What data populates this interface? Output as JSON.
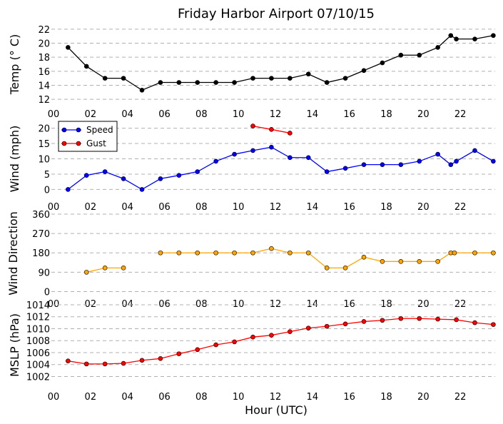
{
  "chart_data": [
    {
      "type": "line",
      "title": "Friday Harbor Airport 07/10/15",
      "ylabel": "Temp ($^\\circ$C)",
      "ylabel_display": "Temp (° C)",
      "xlabel": "",
      "xlim": [
        0,
        24
      ],
      "ylim": [
        11.5,
        22.5
      ],
      "yticks": [
        12,
        14,
        16,
        18,
        20,
        22
      ],
      "ytick_labels": [
        "12",
        "14",
        "16",
        "18",
        "20",
        "22"
      ],
      "xtick_labels": [
        "00",
        "02",
        "04",
        "06",
        "08",
        "10",
        "12",
        "14",
        "16",
        "18",
        "20",
        "22"
      ],
      "grid": true,
      "series": [
        {
          "color": "#000000",
          "x": [
            0.9,
            1.9,
            2.9,
            3.9,
            4.9,
            5.9,
            6.9,
            7.9,
            8.9,
            9.9,
            10.9,
            11.9,
            12.9,
            13.9,
            14.9,
            15.9,
            16.9,
            17.9,
            18.9,
            19.9,
            20.9,
            21.6,
            21.9,
            22.9,
            23.9
          ],
          "values": [
            19.4,
            16.7,
            15.0,
            15.0,
            13.3,
            14.4,
            14.4,
            14.4,
            14.4,
            14.4,
            15.0,
            15.0,
            15.0,
            15.6,
            14.4,
            15.0,
            16.1,
            17.2,
            18.3,
            18.3,
            19.4,
            21.1,
            20.6,
            20.6,
            21.1
          ]
        }
      ]
    },
    {
      "type": "line",
      "ylabel": "Wind (mph)",
      "xlabel": "",
      "xlim": [
        0,
        24
      ],
      "ylim": [
        -2,
        22
      ],
      "yticks": [
        0,
        5,
        10,
        15,
        20
      ],
      "ytick_labels": [
        "0",
        "5",
        "10",
        "15",
        "20"
      ],
      "xtick_labels": [
        "00",
        "02",
        "04",
        "06",
        "08",
        "10",
        "12",
        "14",
        "16",
        "18",
        "20",
        "22"
      ],
      "grid": true,
      "legend": "top-left",
      "series": [
        {
          "name": "Speed",
          "color": "#0000ff",
          "x": [
            0.9,
            1.9,
            2.9,
            3.9,
            4.9,
            5.9,
            6.9,
            7.9,
            8.9,
            9.9,
            10.9,
            11.9,
            12.9,
            13.9,
            14.9,
            15.9,
            16.9,
            17.9,
            18.9,
            19.9,
            20.9,
            21.6,
            21.9,
            22.9,
            23.9
          ],
          "values": [
            0,
            4.6,
            5.8,
            3.5,
            0,
            3.5,
            4.6,
            5.8,
            9.2,
            11.5,
            12.7,
            13.8,
            10.4,
            10.4,
            5.8,
            6.9,
            8.1,
            8.1,
            8.1,
            9.2,
            11.5,
            8.1,
            9.2,
            12.7,
            9.2
          ]
        },
        {
          "name": "Gust",
          "color": "#ff0000",
          "x": [
            10.9,
            11.9,
            12.9
          ],
          "values": [
            20.7,
            19.6,
            18.4
          ]
        }
      ]
    },
    {
      "type": "line",
      "ylabel": "Wind Direction",
      "xlabel": "",
      "xlim": [
        0,
        24
      ],
      "ylim": [
        -5,
        360
      ],
      "yticks": [
        0,
        90,
        180,
        270,
        360
      ],
      "ytick_labels": [
        "0",
        "90",
        "180",
        "270",
        "360"
      ],
      "xtick_labels": [
        "00",
        "02",
        "04",
        "06",
        "08",
        "10",
        "12",
        "14",
        "16",
        "18",
        "20",
        "22"
      ],
      "grid": true,
      "series": [
        {
          "color": "#ffa500",
          "segments": [
            {
              "x": [
                1.9,
                2.9,
                3.9
              ],
              "values": [
                90,
                110,
                110
              ]
            },
            {
              "x": [
                5.9,
                6.9,
                7.9,
                8.9,
                9.9,
                10.9,
                11.9,
                12.9,
                13.9,
                14.9,
                15.9,
                16.9,
                17.9,
                18.9,
                19.9,
                20.9,
                21.6,
                21.8,
                22.9,
                23.9
              ],
              "values": [
                180,
                180,
                180,
                180,
                180,
                180,
                200,
                180,
                180,
                110,
                110,
                160,
                140,
                140,
                140,
                140,
                180,
                180,
                180,
                180
              ]
            }
          ]
        }
      ]
    },
    {
      "type": "line",
      "ylabel": "MSLP (hPa)",
      "xlabel": "Hour (UTC)",
      "xlim": [
        0,
        24
      ],
      "ylim": [
        1000.5,
        1014
      ],
      "yticks": [
        1002,
        1004,
        1006,
        1008,
        1010,
        1012,
        1014
      ],
      "ytick_labels": [
        "1002",
        "1004",
        "1006",
        "1008",
        "1010",
        "1012",
        "1014"
      ],
      "xtick_labels": [
        "00",
        "02",
        "04",
        "06",
        "08",
        "10",
        "12",
        "14",
        "16",
        "18",
        "20",
        "22"
      ],
      "grid": true,
      "series": [
        {
          "color": "#ff0000",
          "x": [
            0.9,
            1.9,
            2.9,
            3.9,
            4.9,
            5.9,
            6.9,
            7.9,
            8.9,
            9.9,
            10.9,
            11.9,
            12.9,
            13.9,
            14.9,
            15.9,
            16.9,
            17.9,
            18.9,
            19.9,
            20.9,
            21.9,
            22.9,
            23.9
          ],
          "values": [
            1004.6,
            1004.1,
            1004.1,
            1004.2,
            1004.7,
            1005.0,
            1005.8,
            1006.5,
            1007.3,
            1007.8,
            1008.6,
            1008.9,
            1009.5,
            1010.1,
            1010.4,
            1010.8,
            1011.2,
            1011.4,
            1011.7,
            1011.7,
            1011.6,
            1011.5,
            1011.0,
            1010.7
          ]
        }
      ]
    }
  ]
}
